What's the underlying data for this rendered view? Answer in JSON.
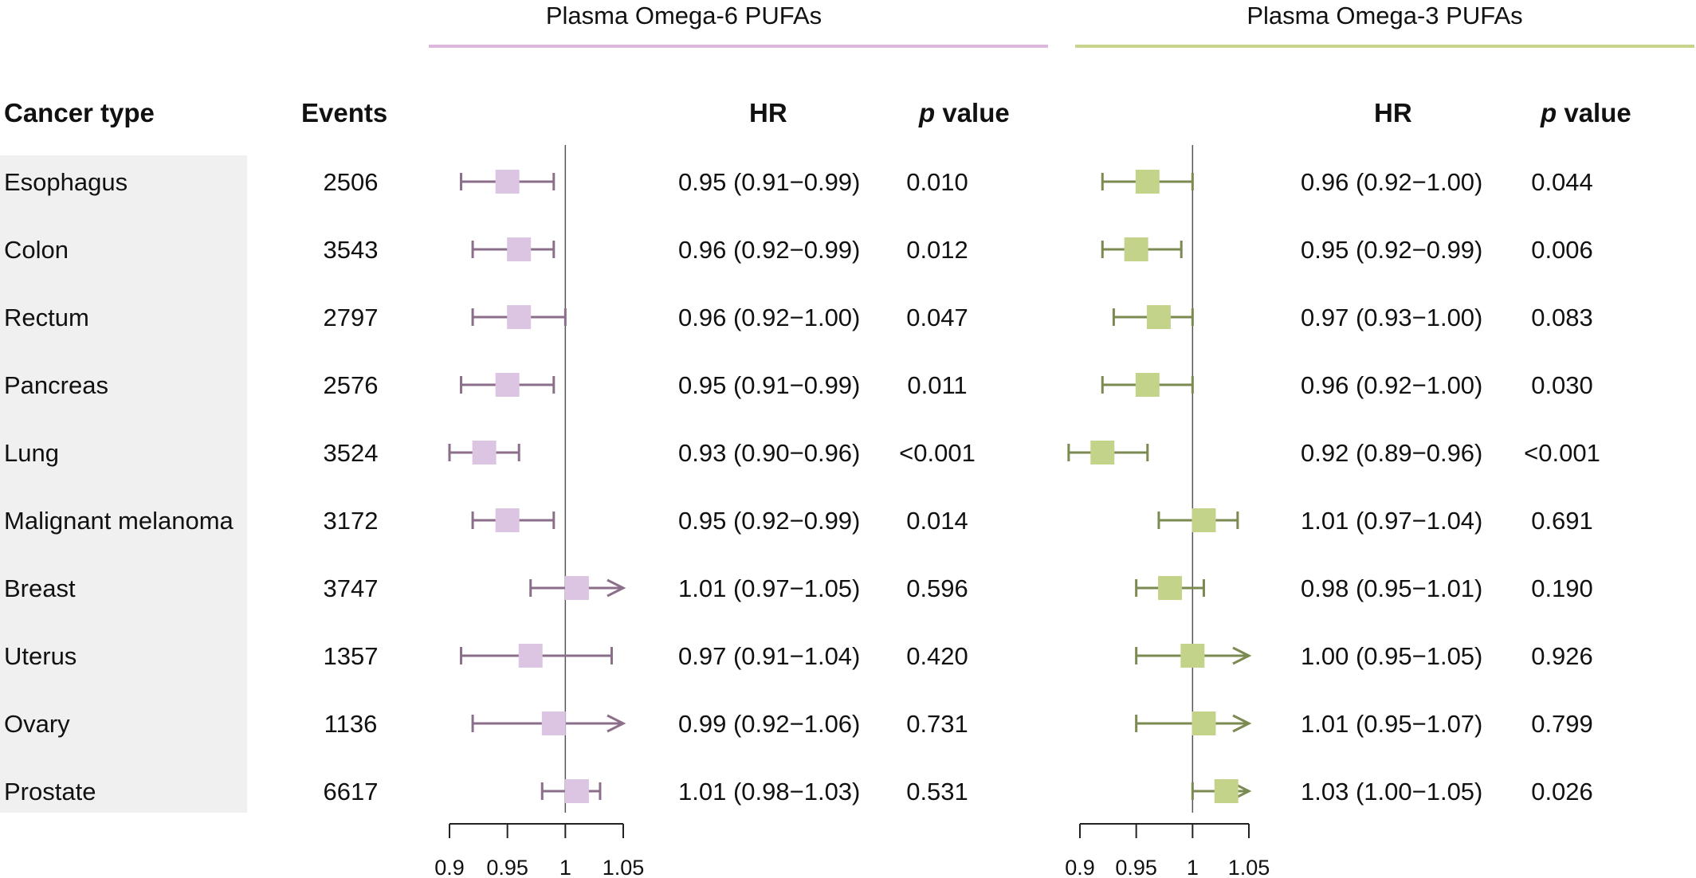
{
  "headers": {
    "cancer_type": "Cancer type",
    "events": "Events",
    "hr": "HR",
    "p_italic": "p",
    "p_rest": " value"
  },
  "chart_data": {
    "type": "forest",
    "rows": [
      "Esophagus",
      "Colon",
      "Rectum",
      "Pancreas",
      "Lung",
      "Malignant melanoma",
      "Breast",
      "Uterus",
      "Ovary",
      "Prostate"
    ],
    "events": [
      "2506",
      "3543",
      "2797",
      "2576",
      "3524",
      "3172",
      "3747",
      "1357",
      "1136",
      "6617"
    ],
    "xlim": [
      0.9,
      1.05
    ],
    "xticks": [
      0.9,
      0.95,
      1,
      1.05
    ],
    "xtick_labels": [
      "0.9",
      "0.95",
      "1",
      "1.05"
    ],
    "reference_line": 1,
    "panels": [
      {
        "title": "Plasma Omega-6 PUFAs",
        "color": "#dcc5e2",
        "line_color": "#8a6e8a",
        "title_rule_color": "#dbb8dc",
        "hr": [
          0.95,
          0.96,
          0.96,
          0.95,
          0.93,
          0.95,
          1.01,
          0.97,
          0.99,
          1.01
        ],
        "lower": [
          0.91,
          0.92,
          0.92,
          0.91,
          0.9,
          0.92,
          0.97,
          0.91,
          0.92,
          0.98
        ],
        "upper": [
          0.99,
          0.99,
          1.0,
          0.99,
          0.96,
          0.99,
          1.05,
          1.04,
          1.06,
          1.03
        ],
        "arrow_right": [
          false,
          false,
          false,
          false,
          false,
          false,
          true,
          false,
          true,
          false
        ],
        "hr_text": [
          "0.95 (0.91−0.99)",
          "0.96 (0.92−0.99)",
          "0.96 (0.92−1.00)",
          "0.95 (0.91−0.99)",
          "0.93 (0.90−0.96)",
          "0.95 (0.92−0.99)",
          "1.01 (0.97−1.05)",
          "0.97 (0.91−1.04)",
          "0.99 (0.92−1.06)",
          "1.01 (0.98−1.03)"
        ],
        "p_text": [
          "0.010",
          "0.012",
          "0.047",
          "0.011",
          "<0.001",
          "0.014",
          "0.596",
          "0.420",
          "0.731",
          "0.531"
        ]
      },
      {
        "title": "Plasma Omega-3 PUFAs",
        "color": "#c3d48a",
        "line_color": "#7a8a50",
        "title_rule_color": "#c6d48c",
        "hr": [
          0.96,
          0.95,
          0.97,
          0.96,
          0.92,
          1.01,
          0.98,
          1.0,
          1.01,
          1.03
        ],
        "lower": [
          0.92,
          0.92,
          0.93,
          0.92,
          0.89,
          0.97,
          0.95,
          0.95,
          0.95,
          1.0
        ],
        "upper": [
          1.0,
          0.99,
          1.0,
          1.0,
          0.96,
          1.04,
          1.01,
          1.05,
          1.07,
          1.05
        ],
        "arrow_right": [
          false,
          false,
          false,
          false,
          false,
          false,
          false,
          true,
          true,
          true
        ],
        "hr_text": [
          "0.96 (0.92−1.00)",
          "0.95 (0.92−0.99)",
          "0.97 (0.93−1.00)",
          "0.96 (0.92−1.00)",
          "0.92 (0.89−0.96)",
          "1.01 (0.97−1.04)",
          "0.98 (0.95−1.01)",
          "1.00 (0.95−1.05)",
          "1.01 (0.95−1.07)",
          "1.03 (1.00−1.05)"
        ],
        "p_text": [
          "0.044",
          "0.006",
          "0.083",
          "0.030",
          "<0.001",
          "0.691",
          "0.190",
          "0.926",
          "0.799",
          "0.026"
        ]
      }
    ]
  }
}
